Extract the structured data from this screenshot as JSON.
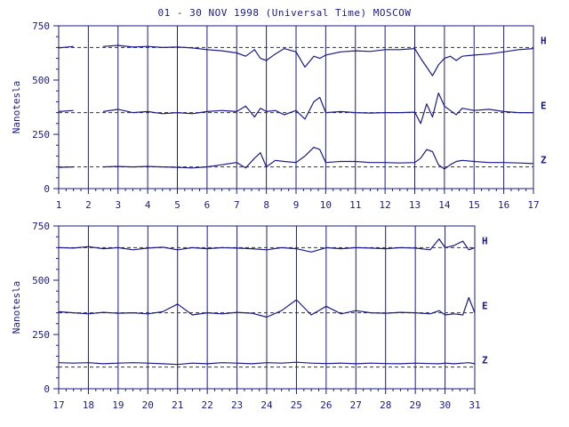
{
  "chart_data": [
    {
      "type": "line",
      "title": "01 - 30 NOV 1998 (Universal Time) MOSCOW",
      "ylabel": "Nanotesla",
      "xlim": [
        1,
        17
      ],
      "ylim": [
        0,
        750
      ],
      "xticks": [
        "1",
        "2",
        "3",
        "4",
        "5",
        "6",
        "7",
        "8",
        "9",
        "10",
        "11",
        "12",
        "13",
        "14",
        "15",
        "16",
        "17"
      ],
      "yticks": [
        "0",
        "250",
        "500",
        "750"
      ],
      "series": [
        {
          "name": "H",
          "baseline": 650,
          "color": "#1a1a8c",
          "x": [
            1.0,
            1.5,
            2.0,
            2.5,
            3.0,
            3.5,
            4.0,
            4.5,
            5.0,
            5.5,
            6.0,
            6.5,
            7.0,
            7.3,
            7.6,
            7.8,
            8.0,
            8.3,
            8.6,
            9.0,
            9.3,
            9.6,
            9.8,
            10.0,
            10.5,
            11.0,
            11.5,
            12.0,
            12.5,
            13.0,
            13.2,
            13.4,
            13.6,
            13.8,
            14.0,
            14.2,
            14.4,
            14.6,
            15.0,
            15.5,
            16.0,
            16.5,
            17.0
          ],
          "values": [
            648,
            655,
            null,
            655,
            660,
            652,
            655,
            650,
            652,
            648,
            640,
            635,
            625,
            610,
            640,
            600,
            590,
            620,
            645,
            630,
            560,
            610,
            600,
            615,
            630,
            635,
            632,
            640,
            640,
            645,
            600,
            560,
            520,
            570,
            600,
            610,
            590,
            610,
            615,
            620,
            630,
            640,
            645
          ]
        },
        {
          "name": "E",
          "baseline": 350,
          "color": "#1a1a8c",
          "x": [
            1.0,
            1.5,
            2.0,
            2.5,
            3.0,
            3.5,
            4.0,
            4.5,
            5.0,
            5.5,
            6.0,
            6.5,
            7.0,
            7.3,
            7.6,
            7.8,
            8.0,
            8.3,
            8.6,
            9.0,
            9.3,
            9.6,
            9.8,
            10.0,
            10.5,
            11.0,
            11.5,
            12.0,
            12.5,
            13.0,
            13.2,
            13.4,
            13.6,
            13.8,
            14.0,
            14.2,
            14.4,
            14.6,
            15.0,
            15.5,
            16.0,
            16.5,
            17.0
          ],
          "values": [
            355,
            360,
            null,
            355,
            365,
            350,
            355,
            345,
            350,
            345,
            355,
            360,
            355,
            380,
            330,
            370,
            355,
            360,
            340,
            360,
            320,
            400,
            420,
            350,
            355,
            350,
            348,
            350,
            350,
            352,
            300,
            390,
            330,
            440,
            380,
            360,
            340,
            370,
            360,
            365,
            355,
            350,
            350
          ]
        },
        {
          "name": "Z",
          "baseline": 100,
          "color": "#1a1a8c",
          "x": [
            1.0,
            1.5,
            2.0,
            2.5,
            3.0,
            3.5,
            4.0,
            4.5,
            5.0,
            5.5,
            6.0,
            6.5,
            7.0,
            7.3,
            7.6,
            7.8,
            8.0,
            8.3,
            8.6,
            9.0,
            9.3,
            9.6,
            9.8,
            10.0,
            10.5,
            11.0,
            11.5,
            12.0,
            12.5,
            13.0,
            13.2,
            13.4,
            13.6,
            13.8,
            14.0,
            14.2,
            14.4,
            14.6,
            15.0,
            15.5,
            16.0,
            16.5,
            17.0
          ],
          "values": [
            98,
            100,
            null,
            100,
            102,
            100,
            102,
            100,
            98,
            95,
            100,
            110,
            120,
            95,
            140,
            165,
            100,
            130,
            125,
            120,
            150,
            190,
            180,
            120,
            125,
            125,
            120,
            120,
            118,
            120,
            140,
            180,
            170,
            110,
            90,
            110,
            125,
            130,
            125,
            120,
            120,
            118,
            115
          ]
        }
      ]
    },
    {
      "type": "line",
      "title": "",
      "ylabel": "Nanotesla",
      "xlim": [
        17,
        31
      ],
      "ylim": [
        0,
        750
      ],
      "xticks": [
        "17",
        "18",
        "19",
        "20",
        "21",
        "22",
        "23",
        "24",
        "25",
        "26",
        "27",
        "28",
        "29",
        "30",
        "31"
      ],
      "yticks": [
        "0",
        "250",
        "500",
        "750"
      ],
      "series": [
        {
          "name": "H",
          "baseline": 650,
          "color": "#1a1a8c",
          "x": [
            17,
            17.5,
            18,
            18.5,
            19,
            19.5,
            20,
            20.5,
            21,
            21.5,
            22,
            22.5,
            23,
            23.5,
            24,
            24.5,
            25,
            25.5,
            26,
            26.5,
            27,
            27.5,
            28,
            28.5,
            29,
            29.5,
            29.8,
            30,
            30.3,
            30.6,
            30.8,
            31
          ],
          "values": [
            650,
            648,
            655,
            645,
            650,
            640,
            648,
            652,
            640,
            650,
            645,
            650,
            648,
            645,
            640,
            650,
            645,
            630,
            650,
            645,
            650,
            648,
            645,
            650,
            648,
            640,
            690,
            650,
            660,
            680,
            640,
            650
          ]
        },
        {
          "name": "E",
          "baseline": 350,
          "color": "#1a1a8c",
          "x": [
            17,
            17.5,
            18,
            18.5,
            19,
            19.5,
            20,
            20.5,
            21,
            21.5,
            22,
            22.5,
            23,
            23.5,
            24,
            24.5,
            25,
            25.5,
            26,
            26.5,
            27,
            27.5,
            28,
            28.5,
            29,
            29.5,
            29.8,
            30,
            30.3,
            30.6,
            30.8,
            31
          ],
          "values": [
            355,
            350,
            345,
            352,
            348,
            350,
            345,
            355,
            390,
            340,
            350,
            345,
            352,
            348,
            330,
            360,
            410,
            340,
            380,
            345,
            360,
            350,
            348,
            352,
            350,
            345,
            360,
            340,
            345,
            340,
            420,
            350
          ]
        },
        {
          "name": "Z",
          "baseline": 100,
          "color": "#1a1a8c",
          "x": [
            17,
            17.5,
            18,
            18.5,
            19,
            19.5,
            20,
            20.5,
            21,
            21.5,
            22,
            22.5,
            23,
            23.5,
            24,
            24.5,
            25,
            25.5,
            26,
            26.5,
            27,
            27.5,
            28,
            28.5,
            29,
            29.5,
            29.8,
            30,
            30.3,
            30.6,
            30.8,
            31
          ],
          "values": [
            120,
            118,
            120,
            115,
            118,
            120,
            118,
            115,
            112,
            118,
            115,
            120,
            118,
            115,
            120,
            118,
            122,
            118,
            116,
            118,
            115,
            118,
            116,
            115,
            118,
            116,
            115,
            118,
            115,
            118,
            120,
            115
          ]
        }
      ]
    }
  ]
}
